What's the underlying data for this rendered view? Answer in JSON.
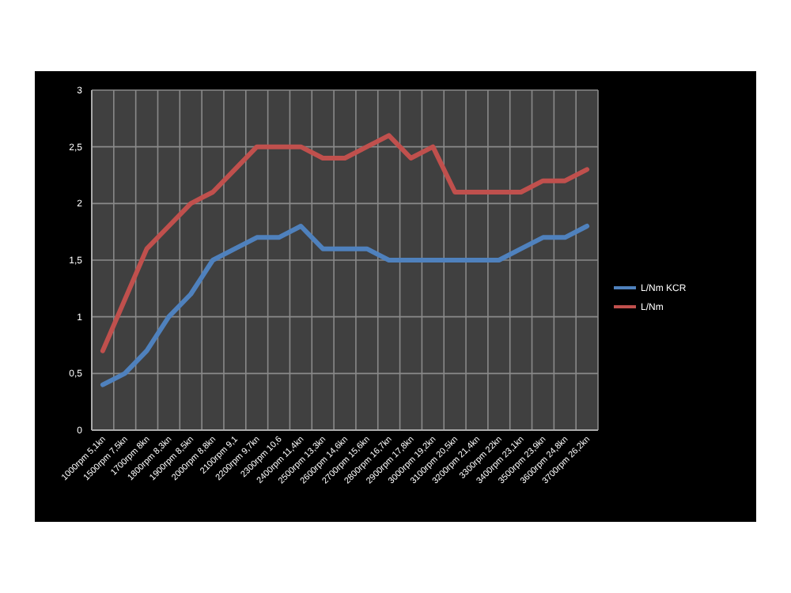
{
  "chart_data": {
    "type": "line",
    "categories": [
      "1000rpm 5,1kn",
      "1500rpm 7,5kn",
      "1700rpm 8kn",
      "1800rpm 8,3kn",
      "1900rpm 8,5kn",
      "2000rpm 8,8kn",
      "2100rpm 9,1",
      "2200rpm 9,7kn",
      "2300rpm 10,6",
      "2400rpm 11,4kn",
      "2500rpm 13,3kn",
      "2600rpm 14,6kn",
      "2700rpm 15,6kn",
      "2800rpm 16,7kn",
      "2900rpm 17,8kn",
      "3000rpm 19,2kn",
      "3100rpm 20,5kn",
      "3200rpm 21,4kn",
      "3300rpm 22kn",
      "3400rpm 23,1kn",
      "3500rpm 23,9kn",
      "3600rpm 24,8kn",
      "3700rpm 26,2kn"
    ],
    "series": [
      {
        "name": "L/Nm KCR",
        "color": "#4f81bd",
        "values": [
          0.4,
          0.5,
          0.7,
          1.0,
          1.2,
          1.5,
          1.6,
          1.7,
          1.7,
          1.8,
          1.6,
          1.6,
          1.6,
          1.5,
          1.5,
          1.5,
          1.5,
          1.5,
          1.5,
          1.6,
          1.7,
          1.7,
          1.8
        ]
      },
      {
        "name": "L/Nm",
        "color": "#c0504d",
        "values": [
          0.7,
          1.15,
          1.6,
          1.8,
          2.0,
          2.1,
          2.3,
          2.5,
          2.5,
          2.5,
          2.4,
          2.4,
          2.5,
          2.6,
          2.4,
          2.5,
          2.1,
          2.1,
          2.1,
          2.1,
          2.2,
          2.2,
          2.3
        ]
      }
    ],
    "ylim": [
      0,
      3
    ],
    "yticks": [
      0,
      {
        "value": 0.5,
        "label": "0,5"
      },
      1,
      {
        "value": 1.5,
        "label": "1,5"
      },
      2,
      {
        "value": 2.5,
        "label": "2,5"
      },
      3
    ],
    "grid": true,
    "legend": "right",
    "marker": "none",
    "line_style": "solid"
  }
}
